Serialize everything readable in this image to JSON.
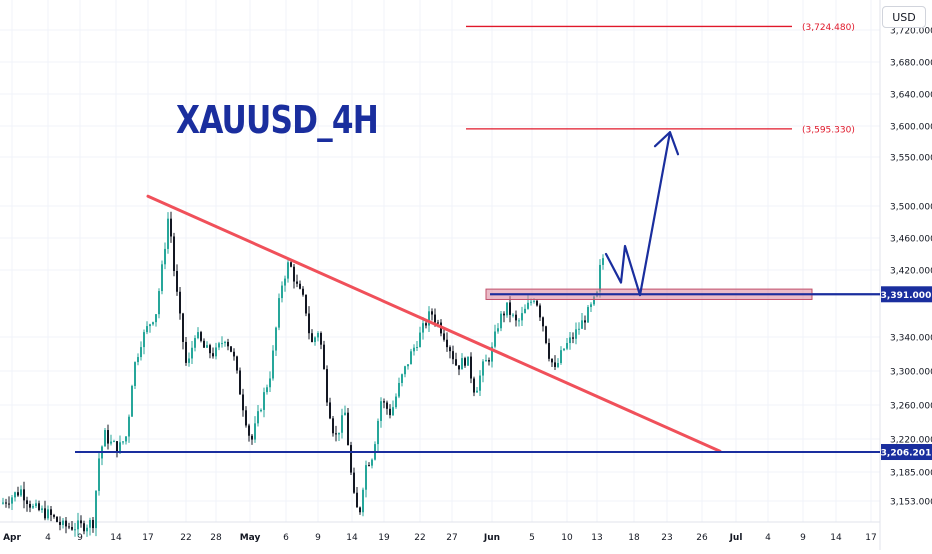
{
  "chart_data": {
    "type": "candlestick",
    "title": "XAUUSD_4H",
    "currency": "USD",
    "y_ticks": [
      "3,720.000",
      "3,680.000",
      "3,640.000",
      "3,600.000",
      "3,550.000",
      "3,500.000",
      "3,460.000",
      "3,420.000",
      "3,340.000",
      "3,300.000",
      "3,260.000",
      "3,220.000",
      "3,185.000",
      "3,153.000"
    ],
    "x_ticks": [
      "Apr",
      "4",
      "9",
      "14",
      "17",
      "22",
      "28",
      "May",
      "6",
      "9",
      "14",
      "19",
      "22",
      "27",
      "Jun",
      "5",
      "10",
      "13",
      "18",
      "23",
      "26",
      "Jul",
      "4",
      "9",
      "14",
      "17"
    ],
    "horizontal_levels": [
      {
        "label": "3,206.201",
        "value": 3206.201,
        "color": "#1a2e9e",
        "style": "solid"
      },
      {
        "label": "3,391.000",
        "value": 3391.0,
        "color": "#1a2e9e",
        "style": "solid"
      },
      {
        "label": "(3,595.330)",
        "value": 3595.33,
        "color": "#e0182a",
        "style": "red-target"
      },
      {
        "label": "(3,724.480)",
        "value": 3724.48,
        "color": "#e0182a",
        "style": "red-target"
      }
    ],
    "trendline": {
      "from": {
        "date": "Apr 17",
        "value": 3510
      },
      "to": {
        "date": "Jun 28",
        "value": 3207
      },
      "color": "#f0505a"
    },
    "zone": {
      "from_date": "May 30",
      "to_date": "Jun 24",
      "top": 3396,
      "bottom": 3386
    },
    "projection": [
      "3,440",
      "3,405",
      "3,450",
      "3,390",
      "3,590"
    ],
    "price_range": [
      3130,
      3760
    ],
    "colors": {
      "up": "#26a69a",
      "down": "#131722",
      "grid": "#f0f3fa",
      "axis_text": "#131722"
    }
  }
}
